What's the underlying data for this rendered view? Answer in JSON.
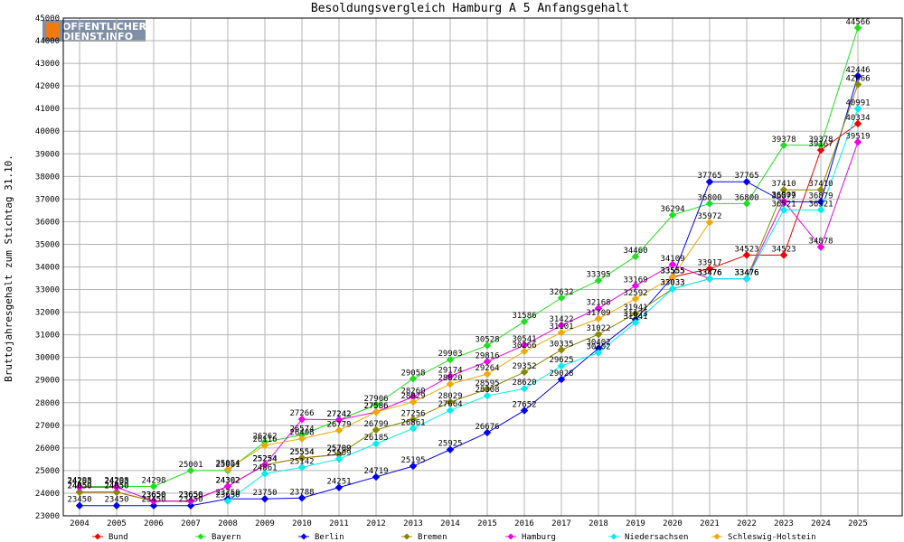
{
  "logo": {
    "line1": "OFFENTLICHER",
    "line2": "DIENST.INFO"
  },
  "chart_data": {
    "type": "line",
    "title": "Besoldungsvergleich Hamburg A 5 Anfangsgehalt",
    "ylabel": "Bruttojahresgehalt zum Stichtag 31.10.",
    "xlabel": "",
    "ylim": [
      23000,
      45000
    ],
    "yticks": [
      23000,
      24000,
      25000,
      26000,
      27000,
      28000,
      29000,
      30000,
      31000,
      32000,
      33000,
      34000,
      35000,
      36000,
      37000,
      38000,
      39000,
      40000,
      41000,
      42000,
      43000,
      44000,
      45000
    ],
    "x": [
      "2004",
      "2005",
      "2006",
      "2007",
      "2008",
      "2009",
      "2010",
      "2011",
      "2012",
      "2013",
      "2014",
      "2015",
      "2016",
      "2017",
      "2018",
      "2019",
      "2020",
      "2021",
      "2022",
      "2023",
      "2024",
      "2025"
    ],
    "legend_position": "bottom",
    "grid": true,
    "series": [
      {
        "name": "Bund",
        "color": "#ee0000",
        "values": [
          24050,
          24050,
          23650,
          23650,
          24302,
          25254,
          25554,
          25709,
          null,
          null,
          null,
          null,
          null,
          null,
          null,
          null,
          33555,
          33917,
          34523,
          34523,
          39167,
          40334
        ]
      },
      {
        "name": "Bayern",
        "color": "#22dd22",
        "values": [
          24298,
          24298,
          24298,
          25001,
          25001,
          26262,
          26574,
          27242,
          27906,
          29058,
          29903,
          30528,
          31586,
          32632,
          33395,
          34460,
          36294,
          36800,
          36800,
          39378,
          39378,
          44566
        ]
      },
      {
        "name": "Berlin",
        "color": "#0000ee",
        "values": [
          23450,
          23450,
          23450,
          23450,
          23750,
          23750,
          23788,
          24251,
          24719,
          25195,
          25925,
          26676,
          27652,
          29028,
          30402,
          31673,
          33555,
          37765,
          37765,
          36879,
          36879,
          42446
        ]
      },
      {
        "name": "Bremen",
        "color": "#888800",
        "values": [
          24050,
          24050,
          23650,
          23650,
          24302,
          25254,
          25554,
          25709,
          26799,
          27256,
          28029,
          28595,
          29352,
          30335,
          31022,
          31941,
          33033,
          33476,
          33476,
          37410,
          37410,
          42066
        ]
      },
      {
        "name": "Hamburg",
        "color": "#ee00ee",
        "values": [
          24263,
          24263,
          23650,
          23650,
          24302,
          25254,
          27266,
          27242,
          27586,
          28260,
          29174,
          29816,
          30541,
          31422,
          32168,
          33169,
          34109,
          33476,
          33476,
          36907,
          34878,
          39519
        ]
      },
      {
        "name": "Niedersachsen",
        "color": "#00eeee",
        "values": [
          null,
          null,
          null,
          null,
          23650,
          24861,
          25142,
          25509,
          26185,
          26861,
          27664,
          28308,
          28620,
          29625,
          30202,
          31541,
          33033,
          33476,
          33476,
          36521,
          36521,
          40991
        ]
      },
      {
        "name": "Schleswig-Holstein",
        "color": "#eeaa00",
        "values": [
          null,
          null,
          null,
          null,
          25054,
          26116,
          26408,
          26779,
          27586,
          28029,
          28820,
          29264,
          30266,
          31101,
          31709,
          32592,
          33555,
          35972,
          null,
          null,
          null,
          null
        ]
      }
    ]
  }
}
